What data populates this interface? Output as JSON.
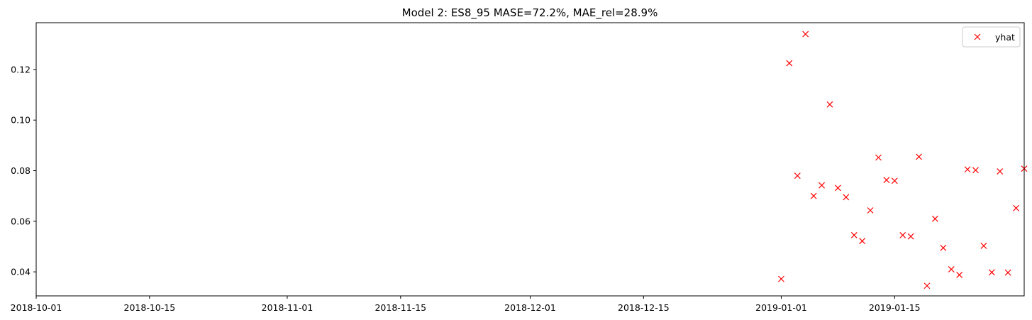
{
  "chart_data": {
    "type": "scatter",
    "title": "Model 2: ES8_95 MASE=72.2%, MAE_rel=28.9%",
    "xlabel": "",
    "ylabel": "",
    "x_ticks": [
      "2018-10-01",
      "2018-10-15",
      "2018-11-01",
      "2018-11-15",
      "2018-12-01",
      "2018-12-15",
      "2019-01-01",
      "2019-01-15"
    ],
    "y_ticks": [
      "0.04",
      "0.06",
      "0.08",
      "0.10",
      "0.12"
    ],
    "xlim": [
      "2018-10-01",
      "2019-01-31"
    ],
    "ylim": [
      0.0305,
      0.1385
    ],
    "grid": false,
    "legend_position": "top-right",
    "series": [
      {
        "name": "yhat",
        "marker": "x",
        "color": "#ff0000",
        "points": [
          {
            "x": "2019-01-01",
            "y": 0.0372
          },
          {
            "x": "2019-01-02",
            "y": 0.1225
          },
          {
            "x": "2019-01-03",
            "y": 0.078
          },
          {
            "x": "2019-01-04",
            "y": 0.134
          },
          {
            "x": "2019-01-05",
            "y": 0.07
          },
          {
            "x": "2019-01-06",
            "y": 0.0742
          },
          {
            "x": "2019-01-07",
            "y": 0.1062
          },
          {
            "x": "2019-01-08",
            "y": 0.0732
          },
          {
            "x": "2019-01-09",
            "y": 0.0695
          },
          {
            "x": "2019-01-10",
            "y": 0.0545
          },
          {
            "x": "2019-01-11",
            "y": 0.0522
          },
          {
            "x": "2019-01-12",
            "y": 0.0643
          },
          {
            "x": "2019-01-13",
            "y": 0.0852
          },
          {
            "x": "2019-01-14",
            "y": 0.0763
          },
          {
            "x": "2019-01-15",
            "y": 0.076
          },
          {
            "x": "2019-01-16",
            "y": 0.0545
          },
          {
            "x": "2019-01-17",
            "y": 0.054
          },
          {
            "x": "2019-01-18",
            "y": 0.0855
          },
          {
            "x": "2019-01-19",
            "y": 0.0345
          },
          {
            "x": "2019-01-20",
            "y": 0.061
          },
          {
            "x": "2019-01-21",
            "y": 0.0495
          },
          {
            "x": "2019-01-22",
            "y": 0.041
          },
          {
            "x": "2019-01-23",
            "y": 0.0388
          },
          {
            "x": "2019-01-24",
            "y": 0.0805
          },
          {
            "x": "2019-01-25",
            "y": 0.0802
          },
          {
            "x": "2019-01-26",
            "y": 0.0503
          },
          {
            "x": "2019-01-27",
            "y": 0.0398
          },
          {
            "x": "2019-01-28",
            "y": 0.0797
          },
          {
            "x": "2019-01-29",
            "y": 0.0397
          },
          {
            "x": "2019-01-30",
            "y": 0.0652
          },
          {
            "x": "2019-01-31",
            "y": 0.0808
          }
        ]
      }
    ]
  }
}
